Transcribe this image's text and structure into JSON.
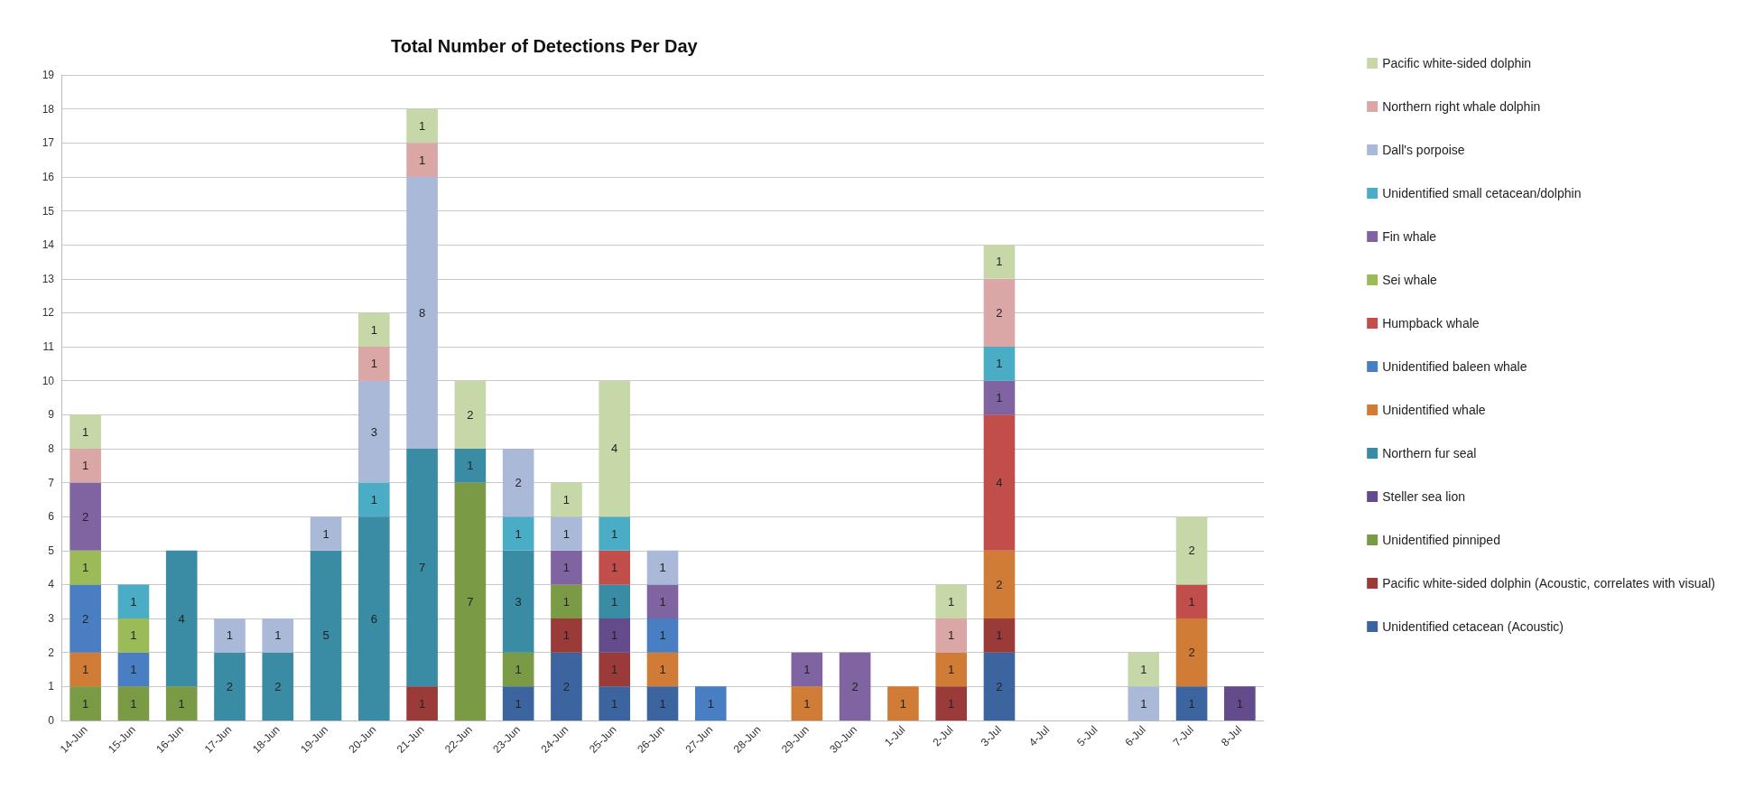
{
  "chart_data": {
    "type": "bar",
    "title": "Total Number of Detections Per Day",
    "stacked": true,
    "data_labels": true,
    "grid": "y",
    "legend": "right",
    "ylim": [
      0,
      19
    ],
    "yticks": [
      0,
      1,
      2,
      3,
      4,
      5,
      6,
      7,
      8,
      9,
      10,
      11,
      12,
      13,
      14,
      15,
      16,
      17,
      18,
      19
    ],
    "categories": [
      "14-Jun",
      "15-Jun",
      "16-Jun",
      "17-Jun",
      "18-Jun",
      "19-Jun",
      "20-Jun",
      "21-Jun",
      "22-Jun",
      "23-Jun",
      "24-Jun",
      "25-Jun",
      "26-Jun",
      "27-Jun",
      "28-Jun",
      "29-Jun",
      "30-Jun",
      "1-Jul",
      "2-Jul",
      "3-Jul",
      "4-Jul",
      "5-Jul",
      "6-Jul",
      "7-Jul",
      "8-Jul"
    ],
    "series": [
      {
        "name": "Unidentified cetacean (Acoustic)",
        "color": "#3c65a0",
        "values": [
          null,
          null,
          null,
          null,
          null,
          null,
          null,
          null,
          null,
          1,
          2,
          1,
          1,
          null,
          null,
          null,
          null,
          null,
          null,
          2,
          null,
          null,
          null,
          1,
          null
        ]
      },
      {
        "name": "Pacific white-sided dolphin (Acoustic, correlates with visual)",
        "color": "#9b3b39",
        "values": [
          null,
          null,
          null,
          null,
          null,
          null,
          null,
          1,
          null,
          null,
          1,
          1,
          null,
          null,
          null,
          null,
          null,
          null,
          1,
          1,
          null,
          null,
          null,
          null,
          null
        ]
      },
      {
        "name": "Unidentified pinniped",
        "color": "#7a9a45",
        "values": [
          1,
          1,
          1,
          null,
          null,
          null,
          null,
          null,
          7,
          1,
          1,
          null,
          null,
          null,
          null,
          null,
          null,
          null,
          null,
          null,
          null,
          null,
          null,
          null,
          null
        ]
      },
      {
        "name": "Steller sea lion",
        "color": "#644b8b",
        "values": [
          null,
          null,
          null,
          null,
          null,
          null,
          null,
          null,
          null,
          null,
          null,
          1,
          null,
          null,
          null,
          null,
          null,
          null,
          null,
          null,
          null,
          null,
          null,
          null,
          1
        ]
      },
      {
        "name": "Northern fur seal",
        "color": "#3a8ba4",
        "values": [
          null,
          null,
          4,
          2,
          2,
          5,
          6,
          7,
          1,
          3,
          null,
          1,
          null,
          null,
          null,
          null,
          null,
          null,
          null,
          null,
          null,
          null,
          null,
          null,
          null
        ]
      },
      {
        "name": "Unidentified whale",
        "color": "#d17c36",
        "values": [
          1,
          null,
          null,
          null,
          null,
          null,
          null,
          null,
          null,
          null,
          null,
          null,
          1,
          null,
          null,
          1,
          null,
          1,
          1,
          2,
          null,
          null,
          null,
          2,
          null
        ]
      },
      {
        "name": "Unidentified baleen whale",
        "color": "#4a7ec2",
        "values": [
          2,
          1,
          null,
          null,
          null,
          null,
          null,
          null,
          null,
          null,
          null,
          null,
          1,
          1,
          null,
          null,
          null,
          null,
          null,
          null,
          null,
          null,
          null,
          null,
          null
        ]
      },
      {
        "name": "Humpback whale",
        "color": "#c24e4b",
        "values": [
          null,
          null,
          null,
          null,
          null,
          null,
          null,
          null,
          null,
          null,
          null,
          1,
          null,
          null,
          null,
          null,
          null,
          null,
          null,
          4,
          null,
          null,
          null,
          1,
          null
        ]
      },
      {
        "name": "Sei whale",
        "color": "#9bbb59",
        "values": [
          1,
          1,
          null,
          null,
          null,
          null,
          null,
          null,
          null,
          null,
          null,
          null,
          null,
          null,
          null,
          null,
          null,
          null,
          null,
          null,
          null,
          null,
          null,
          null,
          null
        ]
      },
      {
        "name": "Fin whale",
        "color": "#8064a2",
        "values": [
          2,
          null,
          null,
          null,
          null,
          null,
          null,
          null,
          null,
          null,
          1,
          null,
          1,
          null,
          null,
          1,
          2,
          null,
          null,
          1,
          null,
          null,
          null,
          null,
          null
        ]
      },
      {
        "name": "Unidentified small cetacean/dolphin",
        "color": "#4bacc6",
        "values": [
          null,
          1,
          null,
          null,
          null,
          null,
          1,
          null,
          null,
          1,
          null,
          1,
          null,
          null,
          null,
          null,
          null,
          null,
          null,
          1,
          null,
          null,
          null,
          null,
          null
        ]
      },
      {
        "name": "Dall's porpoise",
        "color": "#aab9d8",
        "values": [
          null,
          null,
          null,
          1,
          1,
          1,
          3,
          8,
          null,
          2,
          1,
          null,
          1,
          null,
          null,
          null,
          null,
          null,
          null,
          null,
          null,
          null,
          1,
          null,
          null
        ]
      },
      {
        "name": "Northern right whale dolphin",
        "color": "#daa6a6",
        "values": [
          1,
          null,
          null,
          null,
          null,
          null,
          1,
          1,
          null,
          null,
          null,
          null,
          null,
          null,
          null,
          null,
          null,
          null,
          1,
          2,
          null,
          null,
          null,
          null,
          null
        ]
      },
      {
        "name": "Pacific white-sided dolphin",
        "color": "#c6d8a8",
        "values": [
          1,
          null,
          null,
          null,
          null,
          null,
          1,
          1,
          2,
          null,
          1,
          4,
          null,
          null,
          null,
          null,
          null,
          null,
          1,
          1,
          null,
          null,
          1,
          2,
          null
        ]
      }
    ]
  }
}
